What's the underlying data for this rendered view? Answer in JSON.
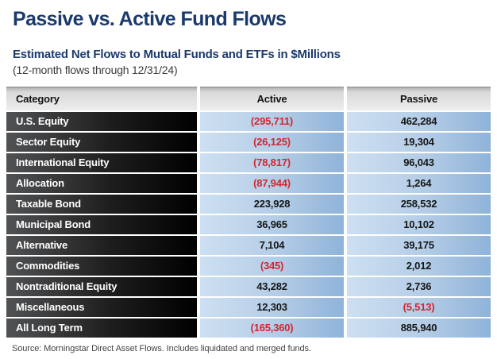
{
  "title": "Passive vs. Active Fund Flows",
  "subtitle": "Estimated Net Flows to Mutual Funds and ETFs in $Millions",
  "period": "(12-month flows through 12/31/24)",
  "source": "Source: Morningstar Direct Asset Flows. Includes liquidated and merged funds.",
  "colors": {
    "heading_navy": "#1b3a6b",
    "negative_red": "#d22630",
    "category_gradient_left": "#515254",
    "category_gradient_right": "#000000",
    "value_gradient_left": "#cde0f2",
    "value_gradient_right": "#8fb3d9",
    "header_gray": "#d9d9d9"
  },
  "table": {
    "columns": [
      "Category",
      "Active",
      "Passive"
    ],
    "rows": [
      {
        "category": "U.S. Equity",
        "active": "(295,711)",
        "passive": "462,284"
      },
      {
        "category": "Sector Equity",
        "active": "(26,125)",
        "passive": "19,304"
      },
      {
        "category": "International Equity",
        "active": "(78,817)",
        "passive": "96,043"
      },
      {
        "category": "Allocation",
        "active": "(87,944)",
        "passive": "1,264"
      },
      {
        "category": "Taxable Bond",
        "active": "223,928",
        "passive": "258,532"
      },
      {
        "category": "Municipal Bond",
        "active": "36,965",
        "passive": "10,102"
      },
      {
        "category": "Alternative",
        "active": "7,104",
        "passive": "39,175"
      },
      {
        "category": "Commodities",
        "active": "(345)",
        "passive": "2,012"
      },
      {
        "category": "Nontraditional Equity",
        "active": "43,282",
        "passive": "2,736"
      },
      {
        "category": "Miscellaneous",
        "active": "12,303",
        "passive": "(5,513)"
      },
      {
        "category": "All Long Term",
        "active": "(165,360)",
        "passive": "885,940"
      }
    ]
  },
  "chart_data": {
    "type": "table",
    "title": "Passive vs. Active Fund Flows",
    "subtitle": "Estimated Net Flows to Mutual Funds and ETFs in $Millions",
    "period": "12-month flows through 12/31/24",
    "columns": [
      "Category",
      "Active",
      "Passive"
    ],
    "categories": [
      "U.S. Equity",
      "Sector Equity",
      "International Equity",
      "Allocation",
      "Taxable Bond",
      "Municipal Bond",
      "Alternative",
      "Commodities",
      "Nontraditional Equity",
      "Miscellaneous",
      "All Long Term"
    ],
    "series": [
      {
        "name": "Active",
        "values": [
          -295711,
          -26125,
          -78817,
          -87944,
          223928,
          36965,
          7104,
          -345,
          43282,
          12303,
          -165360
        ]
      },
      {
        "name": "Passive",
        "values": [
          462284,
          19304,
          96043,
          1264,
          258532,
          10102,
          39175,
          2012,
          2736,
          -5513,
          885940
        ]
      }
    ],
    "units": "$Millions",
    "note": "Negative values shown in parentheses and red",
    "source": "Source: Morningstar Direct Asset Flows. Includes liquidated and merged funds."
  }
}
